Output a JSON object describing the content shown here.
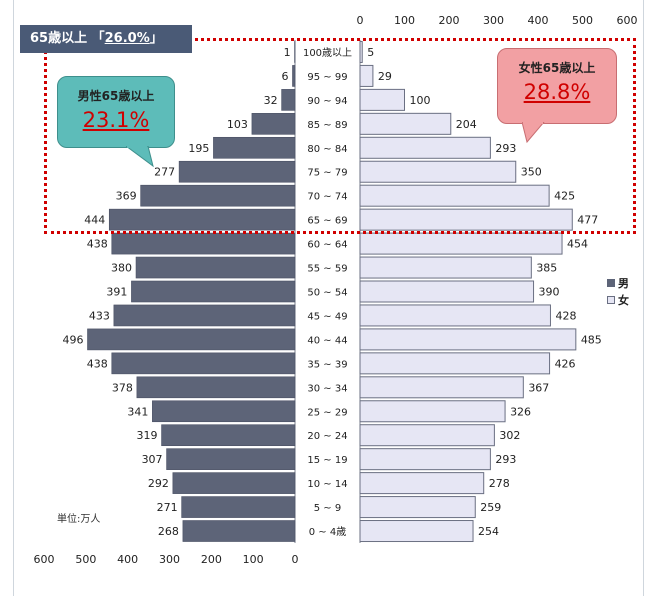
{
  "header": {
    "prefix": "65歳以上 「",
    "value": "26.0%",
    "suffix": "」"
  },
  "male_callout": {
    "title": "男性65歳以上",
    "value": "23.1%"
  },
  "female_callout": {
    "title": "女性65歳以上",
    "value": "28.8%"
  },
  "unit_label": "単位:万人",
  "colors": {
    "male": "#5d6478",
    "female": "#e6e6f4",
    "female_border": "#6a6f82",
    "highlight": "#d00000",
    "header_bg": "#4a5a76"
  },
  "chart_data": {
    "type": "bar",
    "title": "",
    "categories": [
      "100歳以上",
      "95 ~ 99",
      "90 ~ 94",
      "85 ~ 89",
      "80 ~ 84",
      "75 ~ 79",
      "70 ~ 74",
      "65 ~ 69",
      "60 ~ 64",
      "55 ~ 59",
      "50 ~ 54",
      "45 ~ 49",
      "40 ~ 44",
      "35 ~ 39",
      "30 ~ 34",
      "25 ~ 29",
      "20 ~ 24",
      "15 ~ 19",
      "10 ~ 14",
      "5 ~ 9",
      "0 ~ 4歳"
    ],
    "series": [
      {
        "name": "男",
        "values": [
          1,
          6,
          32,
          103,
          195,
          277,
          369,
          444,
          438,
          380,
          391,
          433,
          496,
          438,
          378,
          341,
          319,
          307,
          292,
          271,
          268
        ]
      },
      {
        "name": "女",
        "values": [
          5,
          29,
          100,
          204,
          293,
          350,
          425,
          477,
          454,
          385,
          390,
          428,
          485,
          426,
          367,
          326,
          302,
          293,
          278,
          259,
          254
        ]
      }
    ],
    "male_axis_ticks": [
      "600",
      "500",
      "400",
      "300",
      "200",
      "100",
      "0"
    ],
    "female_axis_ticks": [
      "0",
      "100",
      "200",
      "300",
      "400",
      "500",
      "600"
    ],
    "xlim": [
      0,
      600
    ],
    "legend_position": "right"
  }
}
